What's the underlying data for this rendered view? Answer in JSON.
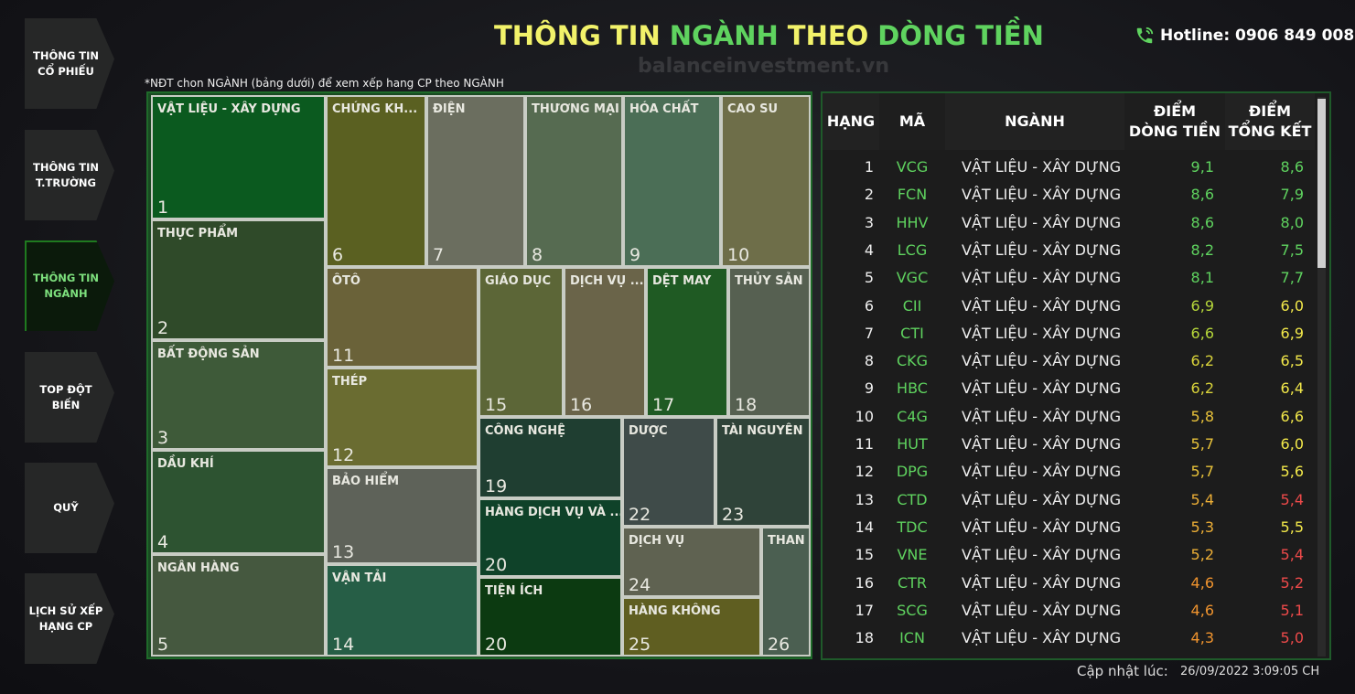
{
  "header": {
    "title": [
      {
        "text": "THÔNG TIN",
        "color": "#f2f26a"
      },
      {
        "text": "NGÀNH",
        "color": "#5fd35f"
      },
      {
        "text": "THEO",
        "color": "#f2f26a"
      },
      {
        "text": "DÒNG TIỀN",
        "color": "#5fd35f"
      }
    ],
    "hotline": "Hotline: 0906 849 008",
    "watermark": "balanceinvestment.vn"
  },
  "sidebar": {
    "items": [
      {
        "label": "THÔNG TIN\nCỔ PHIẾU",
        "active": false
      },
      {
        "label": "THÔNG TIN\nT.TRƯỜNG",
        "active": false
      },
      {
        "label": "THÔNG TIN\nNGÀNH",
        "active": true
      },
      {
        "label": "TOP ĐỘT\nBIẾN",
        "active": false
      },
      {
        "label": "QUỸ",
        "active": false
      },
      {
        "label": "LỊCH SỬ XẾP\nHẠNG CP",
        "active": false
      }
    ]
  },
  "note": "*NĐT chon NGÀNH (bảng dưới) để xem xếp hang CP theo NGÀNH",
  "treemap": {
    "tiles": [
      {
        "label": "VẬT LIỆU - XÂY DỰNG",
        "rank": 1,
        "color": "#0b5a1f"
      },
      {
        "label": "THỰC PHẨM",
        "rank": 2,
        "color": "#2f4a29"
      },
      {
        "label": "BẤT ĐỘNG SẢN",
        "rank": 3,
        "color": "#3e5a39"
      },
      {
        "label": "DẦU KHÍ",
        "rank": 4,
        "color": "#2d5331"
      },
      {
        "label": "NGÂN HÀNG",
        "rank": 5,
        "color": "#45583f"
      },
      {
        "label": "CHỨNG KH...",
        "rank": 6,
        "color": "#5a6021"
      },
      {
        "label": "ĐIỆN",
        "rank": 7,
        "color": "#6b6e5f"
      },
      {
        "label": "THƯƠNG MẠI",
        "rank": 8,
        "color": "#566b51"
      },
      {
        "label": "HÓA CHẤT",
        "rank": 9,
        "color": "#4b6e56"
      },
      {
        "label": "CAO SU",
        "rank": 10,
        "color": "#6e6e49"
      },
      {
        "label": "ÔTÔ",
        "rank": 11,
        "color": "#6a6239"
      },
      {
        "label": "THÉP",
        "rank": 12,
        "color": "#6a6c31"
      },
      {
        "label": "BẢO HIỂM",
        "rank": 13,
        "color": "#5e6259"
      },
      {
        "label": "VẬN TẢI",
        "rank": 14,
        "color": "#265e46"
      },
      {
        "label": "GIÁO DỤC",
        "rank": 15,
        "color": "#5c6637"
      },
      {
        "label": "DỊCH VỤ ...",
        "rank": 16,
        "color": "#6a6449"
      },
      {
        "label": "DỆT MAY",
        "rank": 17,
        "color": "#1f5a23"
      },
      {
        "label": "THỦY SẢN",
        "rank": 18,
        "color": "#566051"
      },
      {
        "label": "CÔNG NGHỆ",
        "rank": 19,
        "color": "#1f3e31"
      },
      {
        "label": "HÀNG DỊCH VỤ VÀ ...",
        "rank": 20,
        "color": "#0f4229"
      },
      {
        "label": "TIỆN ÍCH",
        "rank": 20,
        "color": "#0c3a11"
      },
      {
        "label": "DƯỢC",
        "rank": 22,
        "color": "#3f4b49"
      },
      {
        "label": "TÀI NGUYÊN",
        "rank": 23,
        "color": "#2f4339"
      },
      {
        "label": "DỊCH VỤ",
        "rank": 24,
        "color": "#5f6251"
      },
      {
        "label": "HÀNG KHÔNG",
        "rank": 25,
        "color": "#5f5e21"
      },
      {
        "label": "THAN",
        "rank": 26,
        "color": "#4b5f51"
      }
    ]
  },
  "table": {
    "columns": [
      "HẠNG",
      "MÃ",
      "NGÀNH",
      "ĐIỂM\nDÒNG TIỀN",
      "ĐIỂM\nTỔNG KẾT"
    ],
    "rows": [
      {
        "rank": 1,
        "code": "VCG",
        "sector": "VẬT LIỆU - XÂY DỰNG",
        "flow": "9,1",
        "total": "8,6",
        "flow_color": "#5fd35f",
        "total_color": "#5fd35f"
      },
      {
        "rank": 2,
        "code": "FCN",
        "sector": "VẬT LIỆU - XÂY DỰNG",
        "flow": "8,6",
        "total": "7,9",
        "flow_color": "#5fd35f",
        "total_color": "#5fd35f"
      },
      {
        "rank": 3,
        "code": "HHV",
        "sector": "VẬT LIỆU - XÂY DỰNG",
        "flow": "8,6",
        "total": "8,0",
        "flow_color": "#5fd35f",
        "total_color": "#5fd35f"
      },
      {
        "rank": 4,
        "code": "LCG",
        "sector": "VẬT LIỆU - XÂY DỰNG",
        "flow": "8,2",
        "total": "7,5",
        "flow_color": "#5fd35f",
        "total_color": "#5fd35f"
      },
      {
        "rank": 5,
        "code": "VGC",
        "sector": "VẬT LIỆU - XÂY DỰNG",
        "flow": "8,1",
        "total": "7,7",
        "flow_color": "#5fd35f",
        "total_color": "#5fd35f"
      },
      {
        "rank": 6,
        "code": "CII",
        "sector": "VẬT LIỆU - XÂY DỰNG",
        "flow": "6,9",
        "total": "6,0",
        "flow_color": "#b5d63a",
        "total_color": "#f2e84a"
      },
      {
        "rank": 7,
        "code": "CTI",
        "sector": "VẬT LIỆU - XÂY DỰNG",
        "flow": "6,6",
        "total": "6,9",
        "flow_color": "#b5d63a",
        "total_color": "#f2e84a"
      },
      {
        "rank": 8,
        "code": "CKG",
        "sector": "VẬT LIỆU - XÂY DỰNG",
        "flow": "6,2",
        "total": "6,5",
        "flow_color": "#d8d23a",
        "total_color": "#f2e84a"
      },
      {
        "rank": 9,
        "code": "HBC",
        "sector": "VẬT LIỆU - XÂY DỰNG",
        "flow": "6,2",
        "total": "6,4",
        "flow_color": "#d8d23a",
        "total_color": "#f2e84a"
      },
      {
        "rank": 10,
        "code": "C4G",
        "sector": "VẬT LIỆU - XÂY DỰNG",
        "flow": "5,8",
        "total": "6,6",
        "flow_color": "#e8c23a",
        "total_color": "#f2e84a"
      },
      {
        "rank": 11,
        "code": "HUT",
        "sector": "VẬT LIỆU - XÂY DỰNG",
        "flow": "5,7",
        "total": "6,0",
        "flow_color": "#e8c23a",
        "total_color": "#f2e84a"
      },
      {
        "rank": 12,
        "code": "DPG",
        "sector": "VẬT LIỆU - XÂY DỰNG",
        "flow": "5,7",
        "total": "5,6",
        "flow_color": "#e8c23a",
        "total_color": "#f2e84a"
      },
      {
        "rank": 13,
        "code": "CTD",
        "sector": "VẬT LIỆU - XÂY DỰNG",
        "flow": "5,4",
        "total": "5,4",
        "flow_color": "#ecae36",
        "total_color": "#ee4a4a"
      },
      {
        "rank": 14,
        "code": "TDC",
        "sector": "VẬT LIỆU - XÂY DỰNG",
        "flow": "5,3",
        "total": "5,5",
        "flow_color": "#ecae36",
        "total_color": "#f2e84a"
      },
      {
        "rank": 15,
        "code": "VNE",
        "sector": "VẬT LIỆU - XÂY DỰNG",
        "flow": "5,2",
        "total": "5,4",
        "flow_color": "#ecae36",
        "total_color": "#ee4a4a"
      },
      {
        "rank": 16,
        "code": "CTR",
        "sector": "VẬT LIỆU - XÂY DỰNG",
        "flow": "4,6",
        "total": "5,2",
        "flow_color": "#f0942e",
        "total_color": "#ee4a4a"
      },
      {
        "rank": 17,
        "code": "SCG",
        "sector": "VẬT LIỆU - XÂY DỰNG",
        "flow": "4,6",
        "total": "5,1",
        "flow_color": "#f0942e",
        "total_color": "#ee4a4a"
      },
      {
        "rank": 18,
        "code": "ICN",
        "sector": "VẬT LIỆU - XÂY DỰNG",
        "flow": "4,3",
        "total": "5,0",
        "flow_color": "#f0942e",
        "total_color": "#ee4a4a"
      }
    ]
  },
  "footer": {
    "updated_label": "Cập nhật lúc:",
    "updated_time": "26/09/2022 3:09:05 CH"
  }
}
